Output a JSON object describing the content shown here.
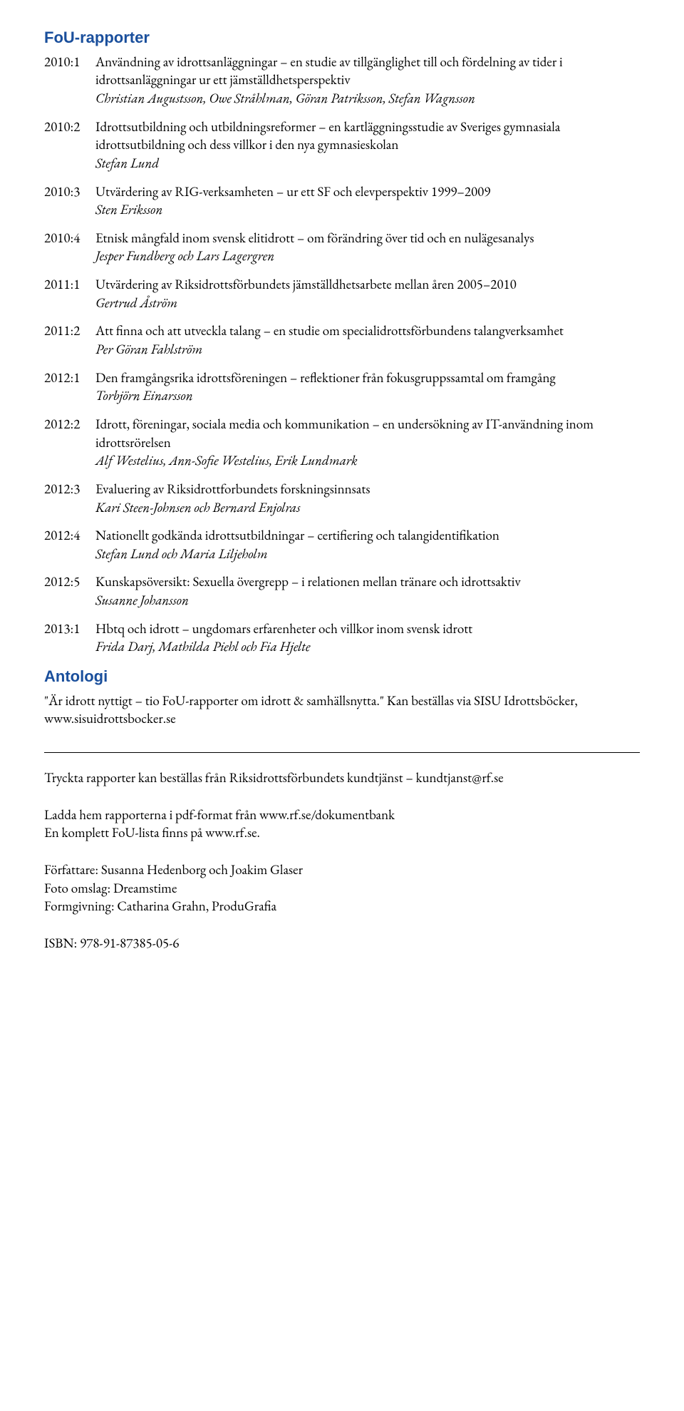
{
  "heading_reports": "FoU-rapporter",
  "reports": [
    {
      "code": "2010:1",
      "title": "Användning av idrottsanläggningar – en studie av tillgänglighet till och fördelning av tider i idrottsanläggningar ur ett jämställdhetsperspektiv",
      "authors": "Christian Augustsson, Owe Stråhlman, Göran Patriksson, Stefan Wagnsson"
    },
    {
      "code": "2010:2",
      "title": "Idrottsutbildning och utbildningsreformer – en kartläggningsstudie av Sveriges gymnasiala idrottsutbildning och dess villkor i den nya gymnasieskolan",
      "authors": "Stefan Lund"
    },
    {
      "code": "2010:3",
      "title": "Utvärdering av RIG-verksamheten – ur ett SF och elevperspektiv 1999–2009",
      "authors": "Sten Eriksson"
    },
    {
      "code": "2010:4",
      "title": "Etnisk mångfald inom svensk elitidrott – om förändring över tid och en nulägesanalys",
      "authors": "Jesper Fundberg och Lars Lagergren"
    },
    {
      "code": "2011:1",
      "title": "Utvärdering av Riksidrottsförbundets jämställdhetsarbete mellan åren 2005–2010",
      "authors": "Gertrud Åström"
    },
    {
      "code": "2011:2",
      "title": "Att finna och att utveckla talang – en studie om specialidrottsförbundens talangverksamhet",
      "authors": "Per Göran Fahlström"
    },
    {
      "code": "2012:1",
      "title": "Den framgångsrika idrottsföreningen – reflektioner från fokusgruppssamtal om framgång",
      "authors": "Torbjörn Einarsson"
    },
    {
      "code": "2012:2",
      "title": "Idrott, föreningar, sociala media och kommunikation – en undersökning av IT-användning inom idrottsrörelsen",
      "authors": "Alf Westelius, Ann-Sofie Westelius, Erik Lundmark"
    },
    {
      "code": "2012:3",
      "title": "Evaluering av Riksidrottforbundets forskningsinnsats",
      "authors": "Kari Steen-Johnsen och Bernard Enjolras"
    },
    {
      "code": "2012:4",
      "title": "Nationellt godkända idrottsutbildningar – certifiering och talangidentifikation",
      "authors": "Stefan Lund och Maria Liljeholm"
    },
    {
      "code": "2012:5",
      "title": "Kunskapsöversikt: Sexuella övergrepp – i relationen mellan tränare och idrottsaktiv",
      "authors": "Susanne Johansson"
    },
    {
      "code": "2013:1",
      "title": "Hbtq och idrott – ungdomars erfarenheter och villkor inom svensk idrott",
      "authors": "Frida Darj, Mathilda Piehl och Fia Hjelte"
    }
  ],
  "heading_antologi": "Antologi",
  "antologi_text": "\"Är idrott nyttigt – tio FoU-rapporter om idrott & samhällsnytta.\" Kan beställas via SISU Idrottsböcker, www.sisuidrottsbocker.se",
  "order_text": "Tryckta rapporter kan beställas från Riksidrottsförbundets kundtjänst – kundtjanst@rf.se",
  "download_line1": "Ladda hem rapporterna i pdf-format från www.rf.se/dokumentbank",
  "download_line2": "En komplett FoU-lista finns på www.rf.se.",
  "authors_line": "Författare: Susanna Hedenborg och Joakim Glaser",
  "photo_line": "Foto omslag: Dreamstime",
  "design_line": "Formgivning: Catharina Grahn, ProduGrafia",
  "isbn_line": "ISBN: 978-91-87385-05-6"
}
